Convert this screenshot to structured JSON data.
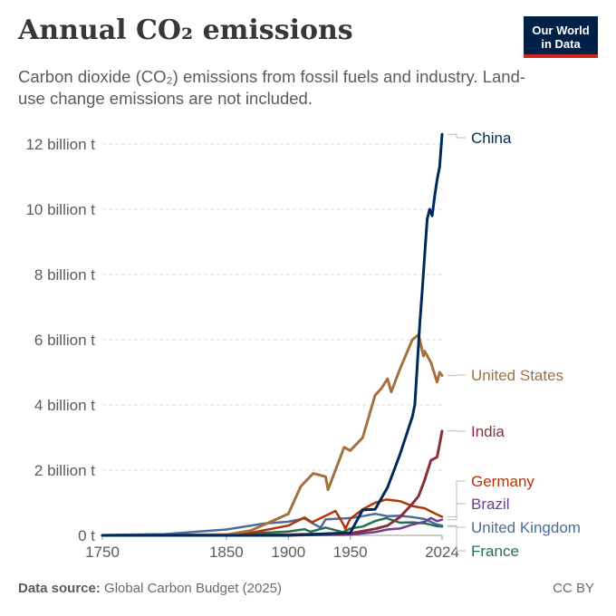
{
  "header": {
    "title": "Annual CO₂ emissions",
    "subtitle": "Carbon dioxide (CO₂) emissions from fossil fuels and industry. Land-use change emissions are not included.",
    "logo_line1": "Our World",
    "logo_line2": "in Data"
  },
  "footer": {
    "source_label": "Data source:",
    "source_text": "Global Carbon Budget (2025)",
    "license": "CC BY"
  },
  "chart_data": {
    "type": "line",
    "title": "Annual CO₂ emissions",
    "ylabel": "",
    "xlabel": "",
    "xlim": [
      1750,
      2024
    ],
    "ylim": [
      0,
      12000000000
    ],
    "grid": true,
    "x_ticks": [
      {
        "value": 1750,
        "label": "1750"
      },
      {
        "value": 1850,
        "label": "1850"
      },
      {
        "value": 1900,
        "label": "1900"
      },
      {
        "value": 1950,
        "label": "1950"
      },
      {
        "value": 2024,
        "label": "2024"
      }
    ],
    "y_ticks": [
      {
        "value": 0,
        "label": "0 t"
      },
      {
        "value": 2000000000,
        "label": "2 billion t"
      },
      {
        "value": 4000000000,
        "label": "4 billion t"
      },
      {
        "value": 6000000000,
        "label": "6 billion t"
      },
      {
        "value": 8000000000,
        "label": "8 billion t"
      },
      {
        "value": 10000000000,
        "label": "10 billion t"
      },
      {
        "value": 12000000000,
        "label": "12 billion t"
      }
    ],
    "series": [
      {
        "name": "China",
        "color": "#00295b",
        "x": [
          1750,
          1900,
          1950,
          1960,
          1970,
          1980,
          1990,
          2000,
          2002,
          2004,
          2006,
          2008,
          2010,
          2012,
          2014,
          2016,
          2018,
          2020,
          2022,
          2024
        ],
        "y": [
          0,
          0,
          80000000,
          780000000,
          800000000,
          1470000000,
          2480000000,
          3640000000,
          4000000000,
          5200000000,
          6500000000,
          7500000000,
          8600000000,
          9700000000,
          10000000000,
          9800000000,
          10400000000,
          10900000000,
          11300000000,
          12300000000
        ]
      },
      {
        "name": "United States",
        "color": "#a2713e",
        "x": [
          1750,
          1800,
          1850,
          1870,
          1900,
          1910,
          1920,
          1930,
          1932,
          1940,
          1945,
          1950,
          1960,
          1970,
          1975,
          1980,
          1983,
          1990,
          2000,
          2005,
          2009,
          2010,
          2015,
          2020,
          2022,
          2024
        ],
        "y": [
          0,
          1000000,
          20000000,
          150000000,
          660000000,
          1500000000,
          1900000000,
          1800000000,
          1400000000,
          2200000000,
          2700000000,
          2600000000,
          3000000000,
          4300000000,
          4500000000,
          4800000000,
          4400000000,
          5100000000,
          6000000000,
          6150000000,
          5500000000,
          5650000000,
          5300000000,
          4700000000,
          5000000000,
          4900000000
        ]
      },
      {
        "name": "India",
        "color": "#883039",
        "x": [
          1750,
          1900,
          1950,
          1970,
          1980,
          1990,
          2000,
          2005,
          2010,
          2015,
          2020,
          2022,
          2024
        ],
        "y": [
          0,
          20000000,
          60000000,
          200000000,
          300000000,
          560000000,
          970000000,
          1200000000,
          1700000000,
          2300000000,
          2400000000,
          2800000000,
          3200000000
        ]
      },
      {
        "name": "Germany",
        "color": "#b13507",
        "x": [
          1750,
          1850,
          1870,
          1900,
          1913,
          1919,
          1930,
          1938,
          1945,
          1946,
          1950,
          1960,
          1970,
          1979,
          1990,
          2000,
          2010,
          2020,
          2024
        ],
        "y": [
          0,
          30000000,
          80000000,
          300000000,
          550000000,
          400000000,
          600000000,
          750000000,
          300000000,
          200000000,
          510000000,
          800000000,
          1000000000,
          1100000000,
          1050000000,
          900000000,
          830000000,
          640000000,
          570000000
        ]
      },
      {
        "name": "Brazil",
        "color": "#6d3e91",
        "x": [
          1750,
          1900,
          1950,
          1970,
          1980,
          1990,
          2000,
          2010,
          2015,
          2020,
          2024
        ],
        "y": [
          0,
          1000000,
          20000000,
          100000000,
          180000000,
          210000000,
          330000000,
          420000000,
          530000000,
          440000000,
          480000000
        ]
      },
      {
        "name": "United Kingdom",
        "color": "#4c6a9c",
        "x": [
          1750,
          1800,
          1850,
          1880,
          1900,
          1913,
          1921,
          1926,
          1930,
          1950,
          1960,
          1970,
          1980,
          1990,
          2000,
          2010,
          2020,
          2024
        ],
        "y": [
          10000000,
          40000000,
          180000000,
          360000000,
          420000000,
          520000000,
          340000000,
          240000000,
          490000000,
          530000000,
          590000000,
          660000000,
          590000000,
          600000000,
          560000000,
          500000000,
          330000000,
          300000000
        ]
      },
      {
        "name": "France",
        "color": "#286e56",
        "x": [
          1750,
          1850,
          1900,
          1913,
          1918,
          1930,
          1944,
          1950,
          1960,
          1970,
          1979,
          1990,
          2000,
          2010,
          2020,
          2024
        ],
        "y": [
          0,
          25000000,
          120000000,
          190000000,
          110000000,
          240000000,
          100000000,
          210000000,
          270000000,
          440000000,
          530000000,
          390000000,
          400000000,
          370000000,
          280000000,
          270000000
        ]
      }
    ]
  }
}
